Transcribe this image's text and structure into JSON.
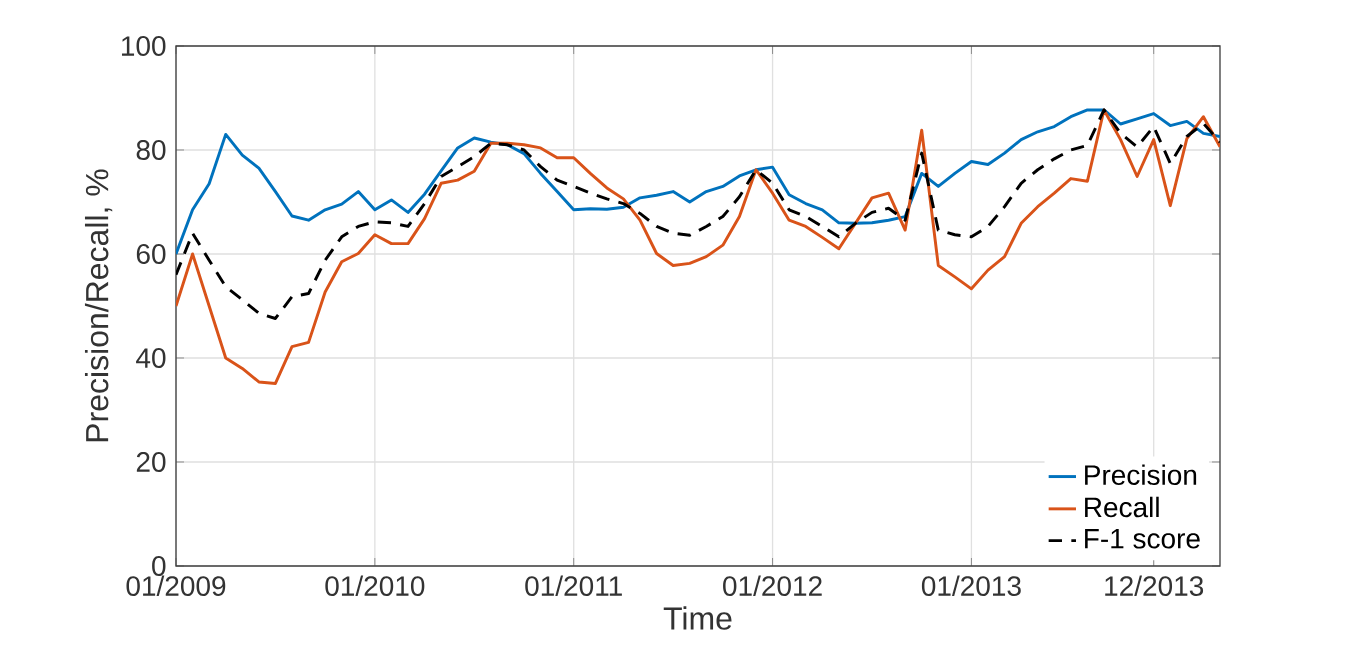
{
  "chart_data": {
    "type": "line",
    "xlabel": "Time",
    "ylabel": "Precision/Recall, %",
    "x": [
      "2009-01",
      "2009-02",
      "2009-03",
      "2009-04",
      "2009-05",
      "2009-06",
      "2009-07",
      "2009-08",
      "2009-09",
      "2009-10",
      "2009-11",
      "2009-12",
      "2010-01",
      "2010-02",
      "2010-03",
      "2010-04",
      "2010-05",
      "2010-06",
      "2010-07",
      "2010-08",
      "2010-09",
      "2010-10",
      "2010-11",
      "2010-12",
      "2011-01",
      "2011-02",
      "2011-03",
      "2011-04",
      "2011-05",
      "2011-06",
      "2011-07",
      "2011-08",
      "2011-09",
      "2011-10",
      "2011-11",
      "2011-12",
      "2012-01",
      "2012-02",
      "2012-03",
      "2012-04",
      "2012-05",
      "2012-06",
      "2012-07",
      "2012-08",
      "2012-09",
      "2012-10",
      "2012-11",
      "2012-12",
      "2013-01",
      "2013-02",
      "2013-03",
      "2013-04",
      "2013-05",
      "2013-06",
      "2013-07",
      "2013-08",
      "2013-09",
      "2013-10",
      "2013-11",
      "2013-12",
      "2014-01",
      "2014-02",
      "2014-03",
      "2014-04"
    ],
    "series": [
      {
        "name": "Precision",
        "color": "#0072bd",
        "line_style": "solid",
        "values": [
          60,
          68.5,
          73.5,
          83,
          79,
          76.5,
          72,
          67.3,
          66.5,
          68.5,
          69.6,
          72,
          68.5,
          70.4,
          68,
          71.5,
          76,
          80.4,
          82.3,
          81.5,
          81,
          79.3,
          75.5,
          72,
          68.5,
          68.7,
          68.6,
          69,
          70.8,
          71.3,
          72,
          70,
          72,
          73,
          75,
          76.2,
          76.7,
          71.4,
          69.7,
          68.5,
          66,
          65.9,
          66,
          66.5,
          67.2,
          75.5,
          73,
          75.5,
          77.8,
          77.2,
          79.4,
          82,
          83.5,
          84.5,
          86.4,
          87.7,
          87.7,
          85,
          86,
          87,
          84.7,
          85.5,
          83.2,
          82.6
        ]
      },
      {
        "name": "Recall",
        "color": "#d95319",
        "line_style": "solid",
        "values": [
          50,
          60,
          50,
          40,
          38,
          35.4,
          35.1,
          42.2,
          43,
          52.7,
          58.5,
          60.1,
          63.7,
          62,
          62,
          66.8,
          73.6,
          74.2,
          75.9,
          81.3,
          81.3,
          81,
          80.4,
          78.5,
          78.5,
          75.5,
          72.7,
          70.6,
          66.5,
          60.1,
          57.8,
          58.2,
          59.5,
          61.7,
          67.2,
          76.2,
          71.7,
          66.5,
          65.3,
          63.2,
          61,
          65.9,
          70.8,
          71.7,
          64.6,
          83.8,
          57.8,
          55.6,
          53.3,
          56.9,
          59.5,
          65.9,
          69.1,
          71.7,
          74.5,
          74,
          87.7,
          82,
          74.9,
          82,
          69.3,
          82.2,
          86.4,
          80.6
        ]
      },
      {
        "name": "F-1 score",
        "color": "#000000",
        "line_style": "dashed",
        "values": [
          56,
          64,
          58.8,
          53.7,
          51.2,
          48.6,
          47.6,
          51.8,
          52.4,
          58.8,
          63.3,
          65.3,
          66.2,
          66,
          65.3,
          69.7,
          74.9,
          76.8,
          78.7,
          81.3,
          81,
          80,
          76.8,
          74.2,
          73,
          71.7,
          70.6,
          69.7,
          67.8,
          65.3,
          64,
          63.6,
          65.3,
          67.2,
          71,
          76.2,
          73.6,
          68.5,
          67.2,
          65.3,
          63.3,
          65.9,
          68,
          68.8,
          66.5,
          79.4,
          64.6,
          63.7,
          63.3,
          65.3,
          69.1,
          73.6,
          76.2,
          78.3,
          80,
          80.9,
          87.7,
          83.2,
          80.6,
          84.5,
          77.4,
          82.6,
          85.1,
          81.5
        ]
      }
    ],
    "xlim": [
      "2009-01",
      "2014-04"
    ],
    "xticks": [
      {
        "value": "2009-01",
        "label": "01/2009"
      },
      {
        "value": "2010-01",
        "label": "01/2010"
      },
      {
        "value": "2011-01",
        "label": "01/2011"
      },
      {
        "value": "2012-01",
        "label": "01/2012"
      },
      {
        "value": "2013-01",
        "label": "01/2013"
      },
      {
        "value": "2013-12",
        "label": "12/2013"
      }
    ],
    "ylim": [
      0,
      100
    ],
    "yticks": [
      0,
      20,
      40,
      60,
      80,
      100
    ],
    "grid": true,
    "legend": "bottom right",
    "marker": "none"
  }
}
